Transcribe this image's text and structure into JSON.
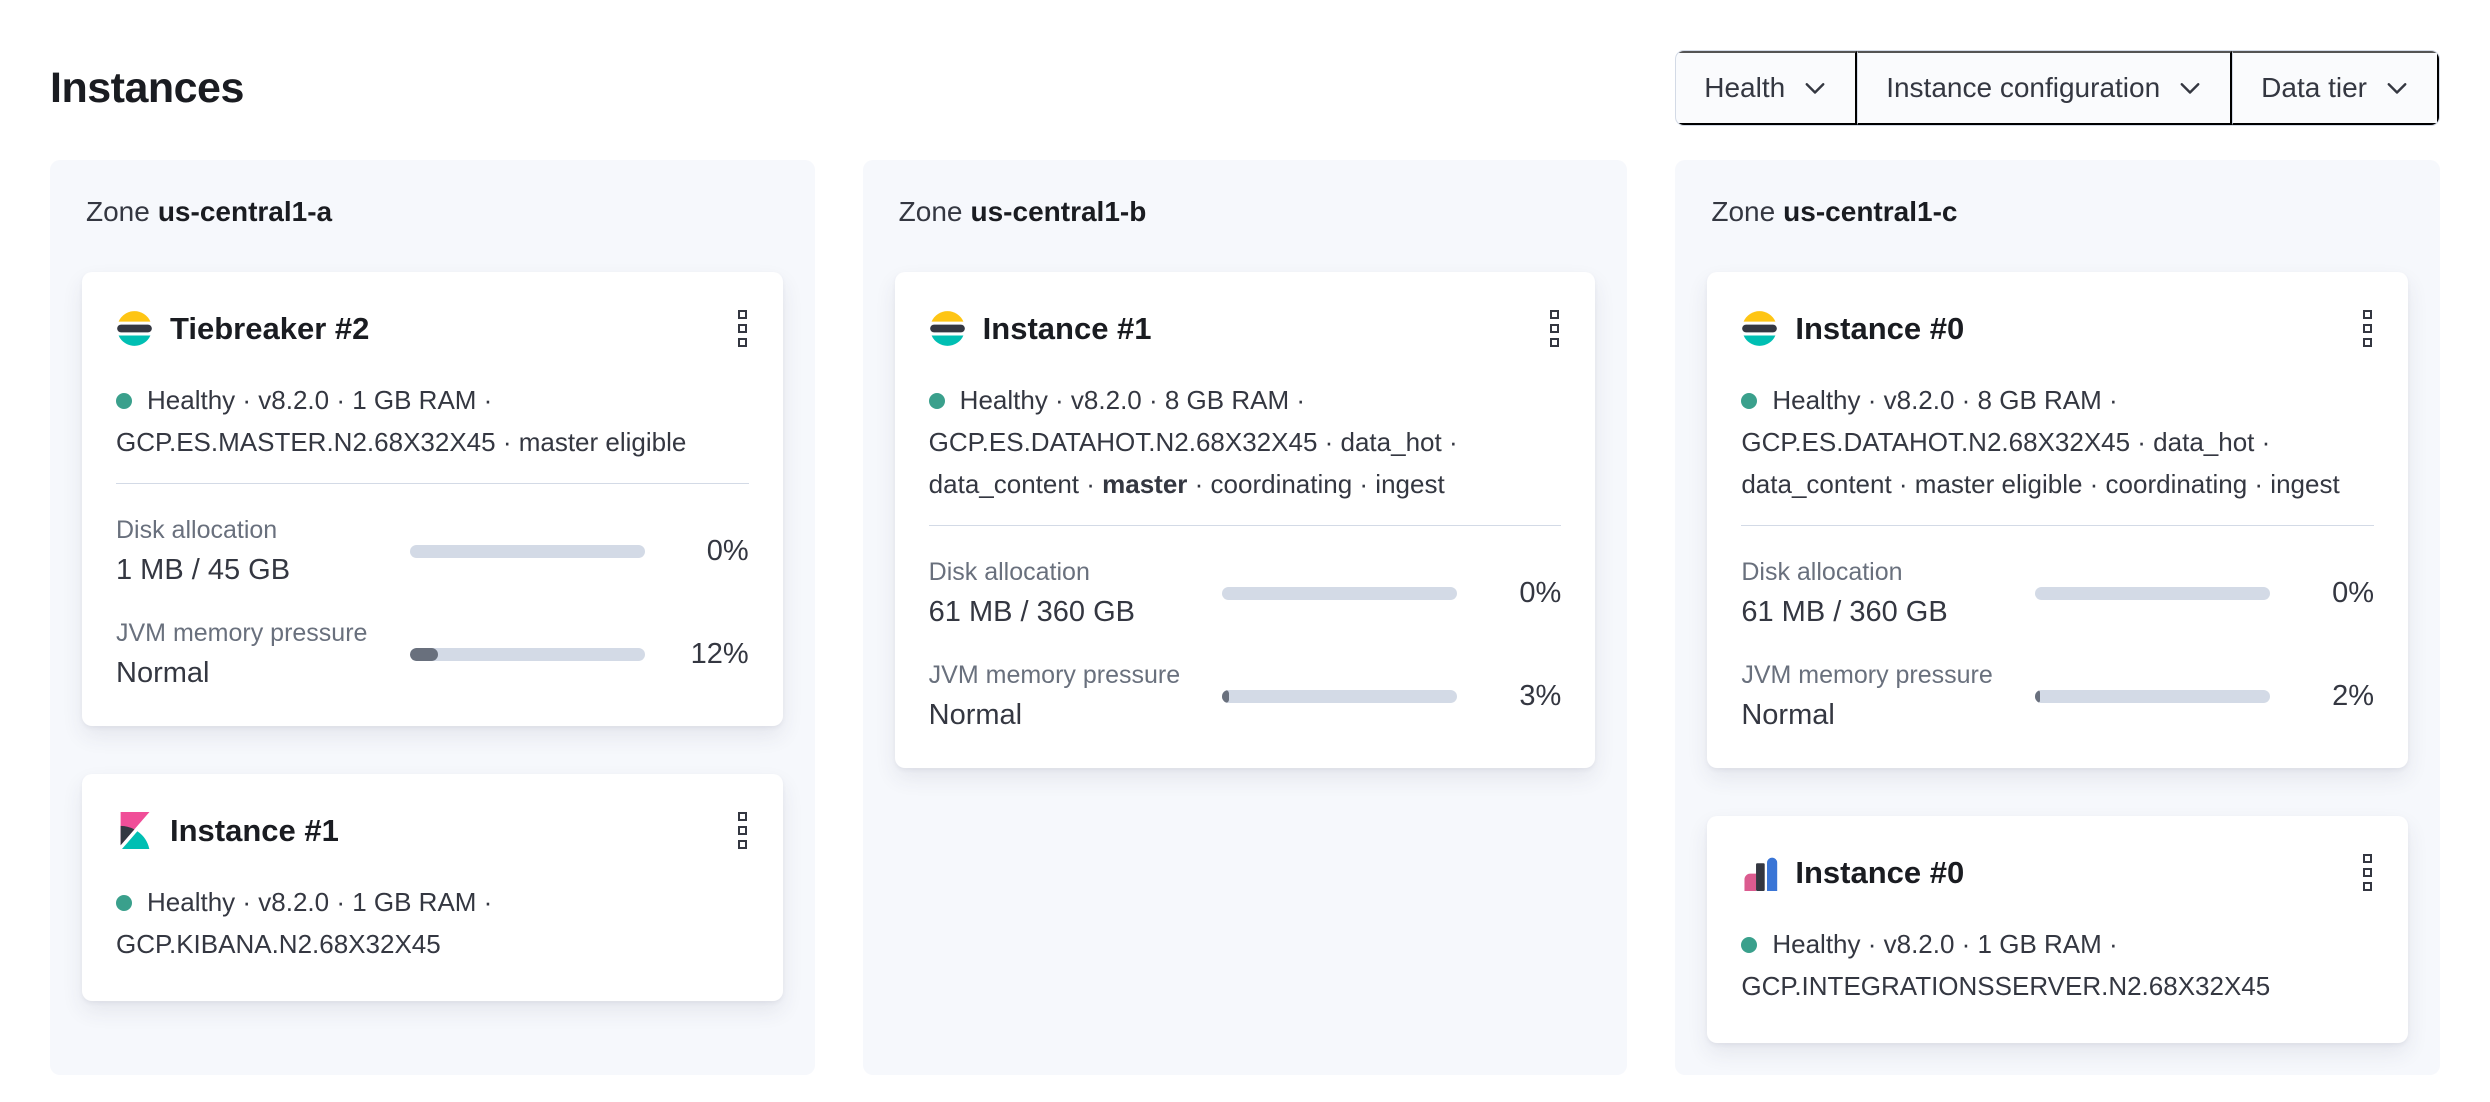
{
  "page": {
    "title": "Instances"
  },
  "filters": {
    "items": [
      {
        "label": "Health",
        "icon": "chevron-down-icon"
      },
      {
        "label": "Instance configuration",
        "icon": "chevron-down-icon"
      },
      {
        "label": "Data tier",
        "icon": "chevron-down-icon"
      }
    ]
  },
  "colors": {
    "healthy_dot": "#3aa08c",
    "bar_track": "#d3dae6",
    "bar_fill": "#69707d",
    "panel_bg": "#f6f8fc",
    "elastic_yellow": "#fec514",
    "elastic_dark": "#343741",
    "elastic_teal": "#00bfb3",
    "kibana_pink": "#f04e98",
    "integrations_pink": "#db5b8f",
    "integrations_blue": "#3a75d6"
  },
  "zones": [
    {
      "label": "Zone",
      "name": "us-central1-a",
      "cards": [
        {
          "logo": "elasticsearch-logo",
          "title": "Tiebreaker #2",
          "menu_icon": "kebab-menu-icon",
          "health": "Healthy",
          "status": "Healthy · v8.2.0 · 1 GB RAM · GCP.ES.MASTER.N2.68X32X45 · master eligible",
          "metrics": [
            {
              "label": "Disk allocation",
              "value": "1 MB / 45 GB",
              "percent_label": "0%",
              "percent_value": 0
            },
            {
              "label": "JVM memory pressure",
              "value": "Normal",
              "percent_label": "12%",
              "percent_value": 12
            }
          ]
        },
        {
          "logo": "kibana-logo",
          "title": "Instance #1",
          "menu_icon": "kebab-menu-icon",
          "health": "Healthy",
          "status": "Healthy · v8.2.0 · 1 GB RAM · GCP.KIBANA.N2.68X32X45"
        }
      ]
    },
    {
      "label": "Zone",
      "name": "us-central1-b",
      "cards": [
        {
          "logo": "elasticsearch-logo",
          "title": "Instance #1",
          "menu_icon": "kebab-menu-icon",
          "health": "Healthy",
          "status_before": "Healthy · v8.2.0 · 8 GB RAM · GCP.ES.DATAHOT.N2.68X32X45 · data_hot · data_content · ",
          "status_bold": "master",
          "status_after": " · coordinating · ingest",
          "metrics": [
            {
              "label": "Disk allocation",
              "value": "61 MB / 360 GB",
              "percent_label": "0%",
              "percent_value": 0
            },
            {
              "label": "JVM memory pressure",
              "value": "Normal",
              "percent_label": "3%",
              "percent_value": 3
            }
          ]
        }
      ]
    },
    {
      "label": "Zone",
      "name": "us-central1-c",
      "cards": [
        {
          "logo": "elasticsearch-logo",
          "title": "Instance #0",
          "menu_icon": "kebab-menu-icon",
          "health": "Healthy",
          "status": "Healthy · v8.2.0 · 8 GB RAM · GCP.ES.DATAHOT.N2.68X32X45 · data_hot · data_content · master eligible · coordinating · ingest",
          "metrics": [
            {
              "label": "Disk allocation",
              "value": "61 MB / 360 GB",
              "percent_label": "0%",
              "percent_value": 0
            },
            {
              "label": "JVM memory pressure",
              "value": "Normal",
              "percent_label": "2%",
              "percent_value": 2
            }
          ]
        },
        {
          "logo": "integrations-server-logo",
          "title": "Instance #0",
          "menu_icon": "kebab-menu-icon",
          "health": "Healthy",
          "status": "Healthy · v8.2.0 · 1 GB RAM · GCP.INTEGRATIONSSERVER.N2.68X32X45"
        }
      ]
    }
  ]
}
